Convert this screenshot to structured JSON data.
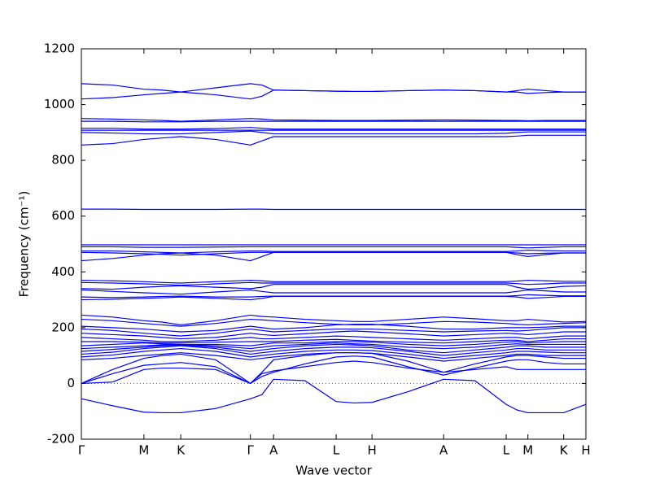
{
  "chart_data": {
    "type": "line",
    "xlabel": "Wave vector",
    "ylabel": "Frequency (cm⁻¹)",
    "xlim": [
      0,
      1
    ],
    "ylim": [
      -200,
      1200
    ],
    "yticks": [
      -200,
      0,
      200,
      400,
      600,
      800,
      1000,
      1200
    ],
    "xticks": [
      {
        "value": 0,
        "label": "Γ"
      },
      {
        "value": 0.124,
        "label": "M"
      },
      {
        "value": 0.197,
        "label": "K"
      },
      {
        "value": 0.335,
        "label": "Γ"
      },
      {
        "value": 0.381,
        "label": "A"
      },
      {
        "value": 0.505,
        "label": "L"
      },
      {
        "value": 0.576,
        "label": "H"
      },
      {
        "value": 0.718,
        "label": "A"
      },
      {
        "value": 0.842,
        "label": "L"
      },
      {
        "value": 0.885,
        "label": "M"
      },
      {
        "value": 0.956,
        "label": "K"
      },
      {
        "value": 1.0,
        "label": "H"
      }
    ],
    "x": [
      0,
      0.062,
      0.124,
      0.16,
      0.197,
      0.266,
      0.335,
      0.358,
      0.381,
      0.443,
      0.505,
      0.54,
      0.576,
      0.647,
      0.718,
      0.78,
      0.842,
      0.863,
      0.885,
      0.92,
      0.956,
      1.0
    ],
    "series": [
      {
        "color": "#0000ff",
        "values": [
          1075,
          1070,
          1055,
          1052,
          1045,
          1060,
          1075,
          1070,
          1052,
          1050,
          1048,
          1047,
          1047,
          1050,
          1052,
          1050,
          1045,
          1050,
          1055,
          1050,
          1045,
          1045
        ]
      },
      {
        "color": "#0000ff",
        "values": [
          1020,
          1025,
          1035,
          1040,
          1045,
          1035,
          1020,
          1030,
          1052,
          1050,
          1048,
          1047,
          1047,
          1050,
          1052,
          1050,
          1045,
          1045,
          1040,
          1043,
          1045,
          1045
        ]
      },
      {
        "color": "#0000ff",
        "values": [
          950,
          948,
          945,
          943,
          940,
          945,
          950,
          948,
          945,
          944,
          943,
          943,
          943,
          944,
          945,
          944,
          943,
          943,
          942,
          943,
          943,
          943
        ]
      },
      {
        "color": "#0000ff",
        "values": [
          940,
          940,
          938,
          938,
          938,
          940,
          940,
          940,
          940,
          940,
          940,
          940,
          940,
          940,
          940,
          940,
          940,
          940,
          940,
          940,
          940,
          940
        ]
      },
      {
        "color": "#0000ff",
        "values": [
          915,
          915,
          912,
          912,
          912,
          914,
          918,
          915,
          912,
          912,
          912,
          912,
          912,
          912,
          912,
          912,
          912,
          912,
          912,
          912,
          912,
          912
        ]
      },
      {
        "color": "#0000ff",
        "values": [
          908,
          908,
          908,
          908,
          908,
          908,
          908,
          908,
          908,
          908,
          908,
          908,
          908,
          908,
          908,
          908,
          908,
          908,
          908,
          908,
          908,
          908
        ]
      },
      {
        "color": "#0000ff",
        "values": [
          900,
          898,
          895,
          895,
          895,
          900,
          905,
          900,
          895,
          895,
          895,
          895,
          895,
          895,
          895,
          895,
          897,
          900,
          902,
          902,
          902,
          902
        ]
      },
      {
        "color": "#0000ff",
        "values": [
          855,
          860,
          875,
          880,
          885,
          875,
          855,
          870,
          885,
          885,
          885,
          885,
          885,
          885,
          885,
          885,
          885,
          887,
          890,
          890,
          890,
          890
        ]
      },
      {
        "color": "#0000ff",
        "values": [
          625,
          625,
          624,
          624,
          624,
          624,
          625,
          625,
          624,
          624,
          624,
          624,
          624,
          624,
          624,
          624,
          624,
          624,
          624,
          624,
          624,
          624
        ]
      },
      {
        "color": "#0000ff",
        "values": [
          497,
          497,
          497,
          497,
          497,
          497,
          497,
          497,
          497,
          497,
          497,
          497,
          497,
          497,
          497,
          497,
          497,
          497,
          497,
          497,
          497,
          497
        ]
      },
      {
        "color": "#0000ff",
        "values": [
          490,
          490,
          488,
          488,
          488,
          489,
          490,
          490,
          490,
          490,
          490,
          490,
          490,
          490,
          490,
          490,
          490,
          488,
          486,
          488,
          490,
          490
        ]
      },
      {
        "color": "#0000ff",
        "values": [
          475,
          475,
          472,
          470,
          468,
          472,
          475,
          475,
          473,
          473,
          473,
          473,
          473,
          473,
          473,
          473,
          473,
          475,
          478,
          476,
          475,
          475
        ]
      },
      {
        "color": "#0000ff",
        "values": [
          470,
          468,
          465,
          463,
          460,
          465,
          470,
          470,
          470,
          470,
          470,
          470,
          470,
          470,
          470,
          470,
          470,
          468,
          465,
          467,
          468,
          468
        ]
      },
      {
        "color": "#0000ff",
        "values": [
          440,
          448,
          460,
          465,
          468,
          460,
          440,
          455,
          470,
          470,
          470,
          470,
          470,
          470,
          470,
          470,
          470,
          462,
          455,
          462,
          468,
          468
        ]
      },
      {
        "color": "#0000ff",
        "values": [
          370,
          368,
          365,
          362,
          360,
          365,
          370,
          368,
          365,
          365,
          365,
          365,
          365,
          365,
          365,
          365,
          365,
          367,
          370,
          368,
          366,
          366
        ]
      },
      {
        "color": "#0000ff",
        "values": [
          362,
          360,
          357,
          355,
          352,
          357,
          362,
          360,
          360,
          360,
          360,
          360,
          360,
          360,
          360,
          360,
          360,
          358,
          355,
          357,
          360,
          360
        ]
      },
      {
        "color": "#0000ff",
        "values": [
          340,
          338,
          345,
          348,
          350,
          345,
          340,
          345,
          355,
          355,
          355,
          355,
          355,
          355,
          355,
          355,
          355,
          345,
          338,
          342,
          348,
          350
        ]
      },
      {
        "color": "#0000ff",
        "values": [
          335,
          330,
          325,
          323,
          320,
          328,
          335,
          330,
          325,
          325,
          325,
          325,
          325,
          325,
          325,
          325,
          325,
          330,
          335,
          332,
          328,
          328
        ]
      },
      {
        "color": "#0000ff",
        "values": [
          310,
          308,
          310,
          312,
          313,
          310,
          310,
          312,
          313,
          313,
          313,
          313,
          313,
          313,
          313,
          313,
          313,
          315,
          318,
          316,
          314,
          314
        ]
      },
      {
        "color": "#0000ff",
        "values": [
          300,
          302,
          305,
          307,
          310,
          305,
          300,
          305,
          312,
          312,
          312,
          312,
          312,
          312,
          312,
          312,
          312,
          310,
          305,
          308,
          312,
          312
        ]
      },
      {
        "color": "#0000ff",
        "values": [
          245,
          238,
          225,
          220,
          210,
          225,
          245,
          240,
          238,
          230,
          225,
          222,
          222,
          230,
          238,
          232,
          225,
          225,
          230,
          225,
          220,
          222
        ]
      },
      {
        "color": "#0000ff",
        "values": [
          230,
          225,
          215,
          210,
          205,
          215,
          230,
          228,
          225,
          218,
          212,
          210,
          210,
          215,
          222,
          220,
          215,
          212,
          210,
          213,
          215,
          218
        ]
      },
      {
        "color": "#0000ff",
        "values": [
          205,
          200,
          195,
          190,
          185,
          190,
          205,
          200,
          195,
          200,
          210,
          212,
          212,
          205,
          195,
          195,
          200,
          200,
          200,
          202,
          205,
          205
        ]
      },
      {
        "color": "#0000ff",
        "values": [
          195,
          190,
          180,
          175,
          170,
          180,
          195,
          190,
          185,
          190,
          195,
          195,
          195,
          190,
          185,
          188,
          190,
          188,
          190,
          195,
          200,
          200
        ]
      },
      {
        "color": "#0000ff",
        "values": [
          180,
          175,
          170,
          165,
          160,
          165,
          180,
          175,
          172,
          178,
          185,
          188,
          185,
          178,
          170,
          175,
          180,
          178,
          175,
          180,
          185,
          185
        ]
      },
      {
        "color": "#0000ff",
        "values": [
          165,
          160,
          155,
          150,
          150,
          155,
          165,
          160,
          160,
          165,
          170,
          168,
          165,
          160,
          155,
          160,
          165,
          165,
          160,
          165,
          170,
          170
        ]
      },
      {
        "color": "#0000ff",
        "values": [
          150,
          150,
          148,
          145,
          145,
          148,
          150,
          150,
          150,
          155,
          158,
          155,
          152,
          148,
          145,
          150,
          155,
          155,
          150,
          155,
          160,
          160
        ]
      },
      {
        "color": "#0000ff",
        "values": [
          135,
          140,
          145,
          142,
          140,
          140,
          135,
          140,
          145,
          145,
          150,
          150,
          148,
          140,
          135,
          140,
          148,
          150,
          145,
          148,
          150,
          150
        ]
      },
      {
        "color": "#0000ff",
        "values": [
          125,
          130,
          135,
          138,
          140,
          135,
          125,
          130,
          135,
          140,
          145,
          142,
          140,
          130,
          125,
          130,
          140,
          142,
          140,
          140,
          140,
          140
        ]
      },
      {
        "color": "#0000ff",
        "values": [
          115,
          122,
          130,
          135,
          138,
          130,
          115,
          120,
          125,
          135,
          140,
          138,
          135,
          120,
          110,
          120,
          130,
          135,
          135,
          130,
          130,
          130
        ]
      },
      {
        "color": "#0000ff",
        "values": [
          105,
          112,
          125,
          130,
          135,
          125,
          105,
          110,
          115,
          125,
          130,
          130,
          128,
          115,
          100,
          110,
          120,
          125,
          125,
          120,
          120,
          120
        ]
      },
      {
        "color": "#0000ff",
        "values": [
          95,
          102,
          115,
          120,
          125,
          115,
          95,
          100,
          105,
          115,
          120,
          120,
          118,
          105,
          90,
          100,
          110,
          115,
          115,
          112,
          110,
          110
        ]
      },
      {
        "color": "#0000ff",
        "values": [
          85,
          90,
          100,
          105,
          110,
          100,
          85,
          90,
          95,
          105,
          110,
          110,
          108,
          95,
          80,
          90,
          100,
          105,
          105,
          100,
          100,
          100
        ]
      },
      {
        "color": "#0000ff",
        "values": [
          0,
          50,
          90,
          100,
          105,
          85,
          0,
          40,
          85,
          100,
          110,
          110,
          108,
          80,
          40,
          70,
          95,
          100,
          100,
          95,
          90,
          90
        ]
      },
      {
        "color": "#0000ff",
        "values": [
          0,
          35,
          65,
          70,
          75,
          60,
          0,
          25,
          40,
          70,
          95,
          98,
          95,
          60,
          30,
          55,
          80,
          85,
          85,
          75,
          70,
          70
        ]
      },
      {
        "color": "#0000ff",
        "values": [
          0,
          5,
          50,
          55,
          55,
          50,
          0,
          35,
          45,
          60,
          75,
          80,
          75,
          55,
          40,
          50,
          60,
          50,
          50,
          50,
          50,
          50
        ]
      },
      {
        "color": "#0000ff",
        "values": [
          -55,
          -80,
          -103,
          -105,
          -105,
          -90,
          -55,
          -40,
          15,
          10,
          -65,
          -70,
          -68,
          -30,
          15,
          10,
          -75,
          -95,
          -105,
          -105,
          -105,
          -75
        ]
      }
    ]
  }
}
